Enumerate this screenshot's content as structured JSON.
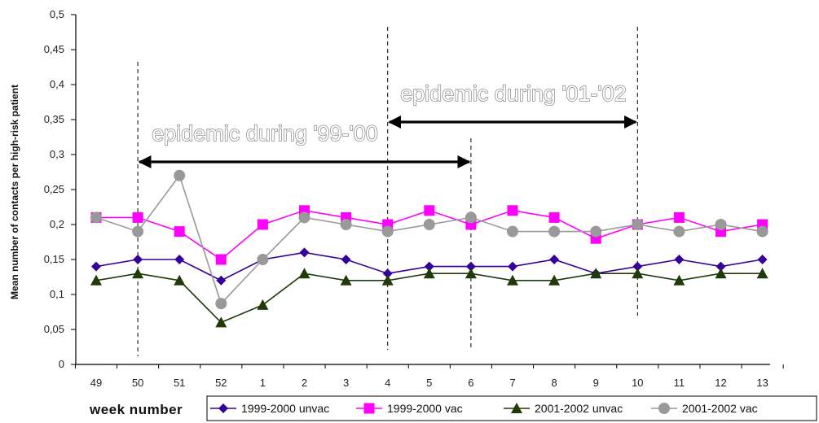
{
  "chart_data": {
    "type": "line",
    "ylabel": "Mean number of contacts per high-risk patient",
    "xlabel": "week number",
    "ylim": [
      0,
      0.5
    ],
    "yticks": [
      "0",
      "0,05",
      "0,1",
      "0,15",
      "0,2",
      "0,25",
      "0,3",
      "0,35",
      "0,4",
      "0,45",
      "0,5"
    ],
    "categories": [
      "49",
      "50",
      "51",
      "52",
      "1",
      "2",
      "3",
      "4",
      "5",
      "6",
      "7",
      "8",
      "9",
      "10",
      "11",
      "12",
      "13"
    ],
    "series": [
      {
        "name": "1999-2000 unvac",
        "color": "#330099",
        "marker": "diamond",
        "values": [
          0.14,
          0.15,
          0.15,
          0.12,
          0.15,
          0.16,
          0.15,
          0.13,
          0.14,
          0.14,
          0.14,
          0.15,
          0.13,
          0.14,
          0.15,
          0.14,
          0.15
        ]
      },
      {
        "name": "1999-2000 vac",
        "color": "#ff00ff",
        "marker": "square",
        "values": [
          0.21,
          0.21,
          0.19,
          0.15,
          0.2,
          0.22,
          0.21,
          0.2,
          0.22,
          0.2,
          0.22,
          0.21,
          0.18,
          0.2,
          0.21,
          0.19,
          0.2
        ]
      },
      {
        "name": "2001-2002 unvac",
        "color": "#203a0a",
        "marker": "triangle",
        "values": [
          0.12,
          0.13,
          0.12,
          0.06,
          0.085,
          0.13,
          0.12,
          0.12,
          0.13,
          0.13,
          0.12,
          0.12,
          0.13,
          0.13,
          0.12,
          0.13,
          0.13
        ]
      },
      {
        "name": "2001-2002 vac",
        "color": "#999999",
        "marker": "circle",
        "values": [
          0.21,
          0.19,
          0.27,
          0.087,
          0.15,
          0.21,
          0.2,
          0.19,
          0.2,
          0.21,
          0.19,
          0.19,
          0.19,
          0.2,
          0.19,
          0.2,
          0.19
        ]
      }
    ],
    "annotations": [
      {
        "text": "epidemic during '99-'00",
        "start": "50",
        "end": "6"
      },
      {
        "text": "epidemic during '01-'02",
        "start": "4",
        "end": "10"
      }
    ],
    "grid": false,
    "legend_position": "bottom"
  }
}
